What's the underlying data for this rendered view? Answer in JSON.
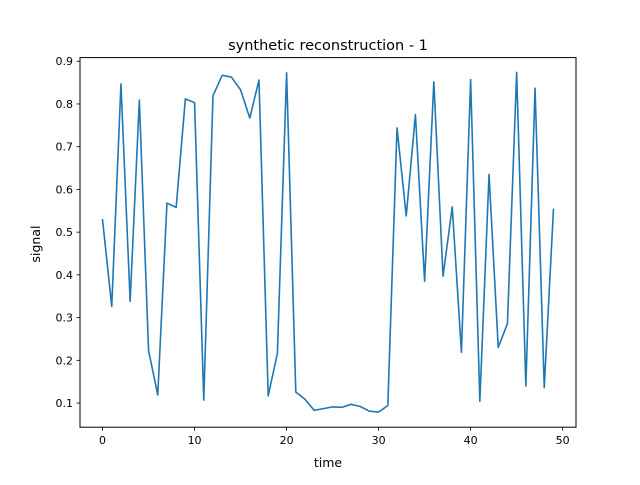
{
  "chart_data": {
    "type": "line",
    "title": "synthetic reconstruction - 1",
    "xlabel": "time",
    "ylabel": "signal",
    "xlim": [
      -2.45,
      51.45
    ],
    "ylim": [
      0.0435,
      0.9085
    ],
    "xticks": [
      0,
      10,
      20,
      30,
      40,
      50
    ],
    "yticks": [
      0.1,
      0.2,
      0.3,
      0.4,
      0.5,
      0.6,
      0.7,
      0.8,
      0.9
    ],
    "grid": false,
    "series": [
      {
        "color": "#1f77b4",
        "x": [
          0,
          1,
          2,
          3,
          4,
          5,
          6,
          7,
          8,
          9,
          10,
          11,
          12,
          13,
          14,
          15,
          16,
          17,
          18,
          19,
          20,
          21,
          22,
          23,
          24,
          25,
          26,
          27,
          28,
          29,
          30,
          31,
          32,
          33,
          34,
          35,
          36,
          37,
          38,
          39,
          40,
          41,
          42,
          43,
          44,
          45,
          46,
          47,
          48,
          49
        ],
        "y": [
          0.529,
          0.326,
          0.847,
          0.338,
          0.809,
          0.223,
          0.119,
          0.568,
          0.558,
          0.812,
          0.803,
          0.107,
          0.819,
          0.867,
          0.863,
          0.833,
          0.767,
          0.856,
          0.117,
          0.216,
          0.873,
          0.126,
          0.109,
          0.083,
          0.087,
          0.091,
          0.09,
          0.097,
          0.092,
          0.081,
          0.079,
          0.094,
          0.744,
          0.538,
          0.775,
          0.385,
          0.852,
          0.397,
          0.559,
          0.219,
          0.857,
          0.104,
          0.635,
          0.23,
          0.286,
          0.874,
          0.14,
          0.837,
          0.136,
          0.553
        ]
      }
    ]
  }
}
